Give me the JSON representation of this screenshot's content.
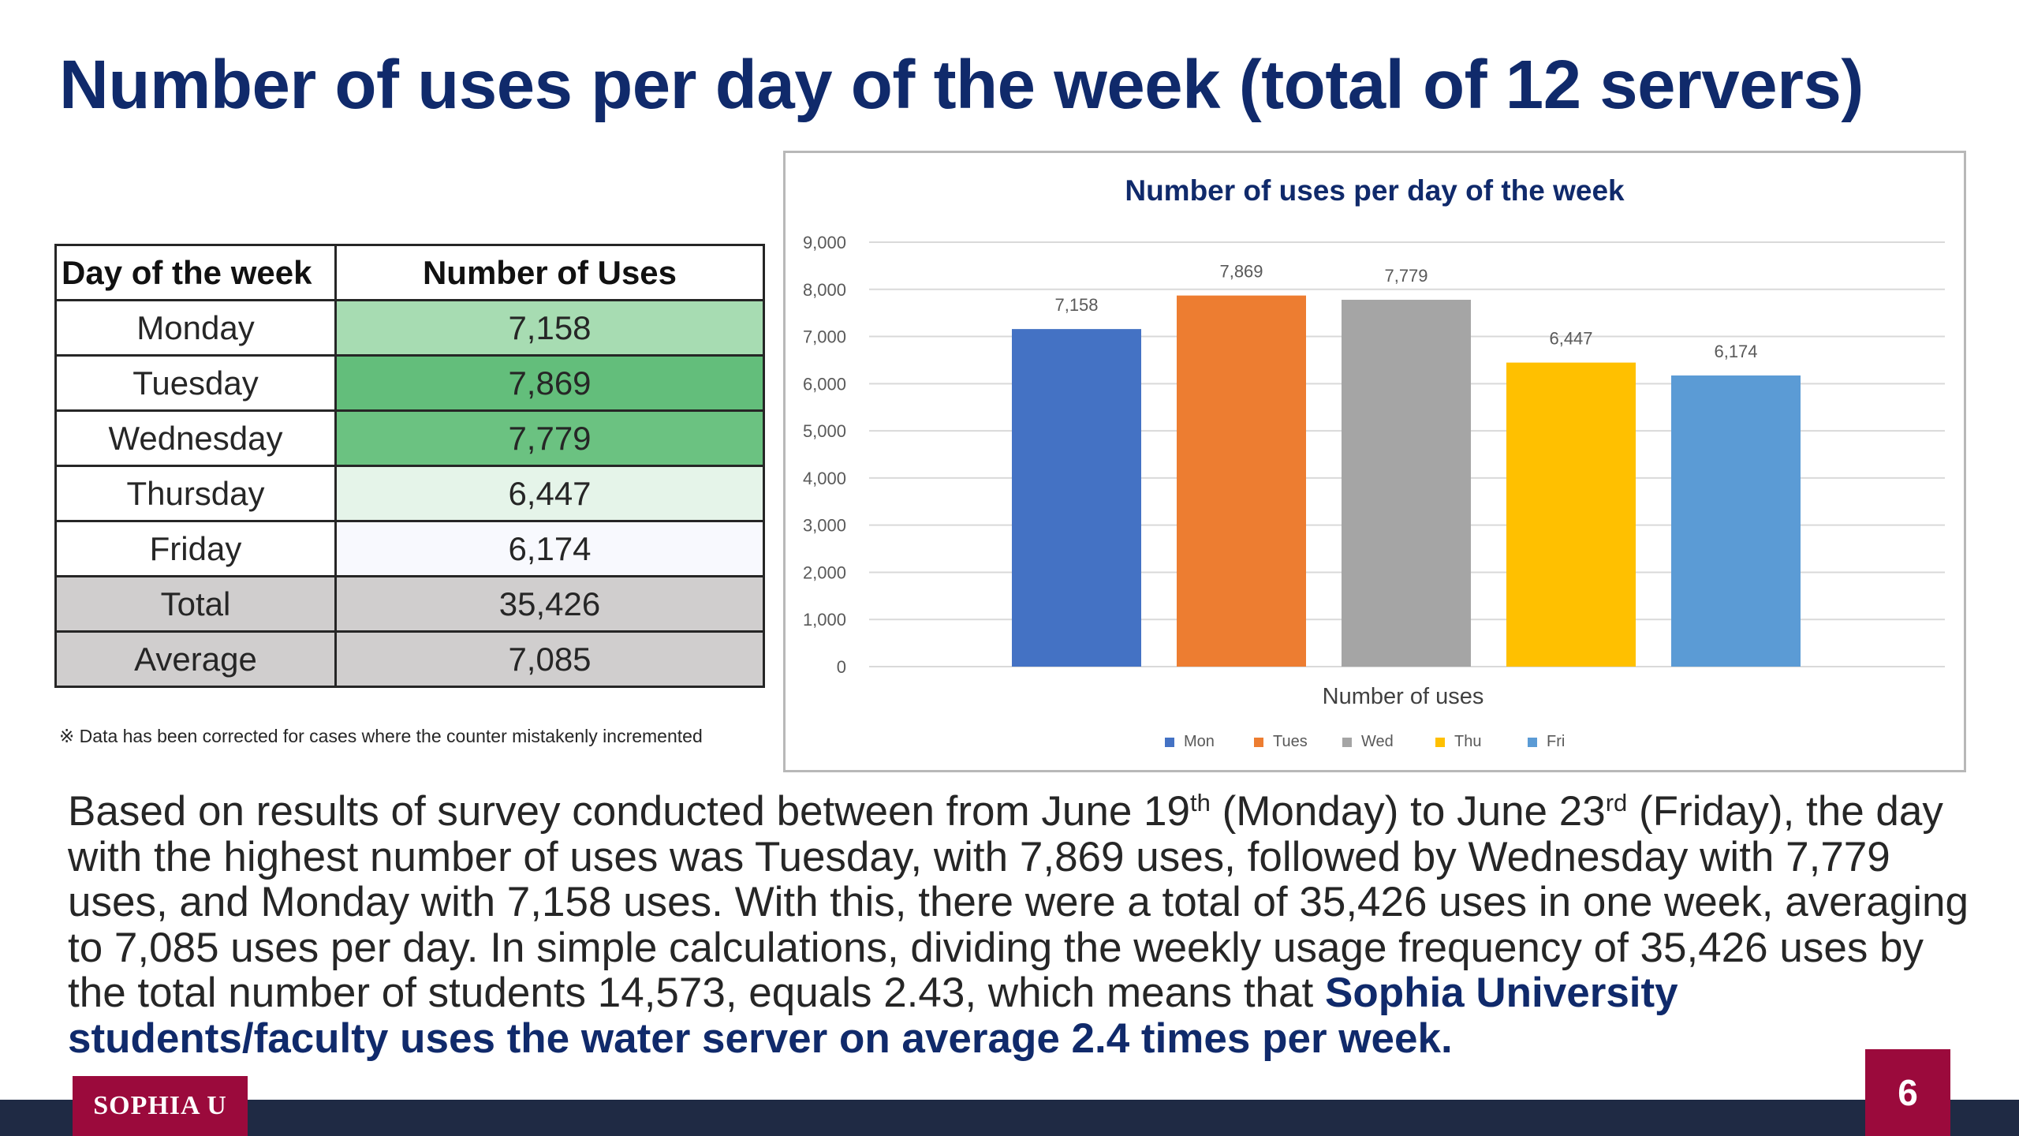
{
  "slide": {
    "title": "Number of uses per day of the week (total of 12 servers)",
    "footnote": "※ Data has been corrected for cases where the counter mistakenly incremented",
    "logo_text": "SOPHIA U",
    "page_number": "6"
  },
  "table": {
    "headers": [
      "Day of the week",
      "Number of Uses"
    ],
    "rows": [
      {
        "day": "Monday",
        "uses": "7,158",
        "fill": "#a7dcb2"
      },
      {
        "day": "Tuesday",
        "uses": "7,869",
        "fill": "#63be7b"
      },
      {
        "day": "Wednesday",
        "uses": "7,779",
        "fill": "#6bc281"
      },
      {
        "day": "Thursday",
        "uses": "6,447",
        "fill": "#e5f4e9"
      },
      {
        "day": "Friday",
        "uses": "6,174",
        "fill": "#f8f9fe"
      },
      {
        "day": "Total",
        "uses": "35,426",
        "fill": "#d0cece"
      },
      {
        "day": "Average",
        "uses": "7,085",
        "fill": "#d0cece"
      }
    ]
  },
  "summary": {
    "p1": "Based on results of survey conducted between from June 19",
    "sup1": "th",
    "p2": " (Monday) to June 23",
    "sup2": "rd",
    "p3": " (Friday), the day with the highest number of uses was Tuesday, with 7,869 uses, followed by Wednesday with 7,779 uses, and Monday with 7,158 uses. With this, there were a total of 35,426 uses in one week, averaging to 7,085 uses per day. In simple calculations, dividing the weekly usage frequency of 35,426 uses by the total number of students 14,573, equals 2.43, which means that ",
    "highlight": "Sophia University students/faculty uses the water server on average 2.4 times per week."
  },
  "colors": {
    "title": "#102a6b",
    "accent": "#9b0a3c",
    "footer": "#1f2a44"
  },
  "chart_data": {
    "type": "bar",
    "title": "Number of uses per day of the week",
    "xlabel": "Number of uses",
    "ylabel": "",
    "categories": [
      "Mon",
      "Tues",
      "Wed",
      "Thu",
      "Fri"
    ],
    "values": [
      7158,
      7869,
      7779,
      6447,
      6174
    ],
    "data_labels": [
      "7,158",
      "7,869",
      "7,779",
      "6,447",
      "6,174"
    ],
    "colors": [
      "#4472c4",
      "#ed7d31",
      "#a5a5a5",
      "#ffc000",
      "#5b9bd5"
    ],
    "ylim": [
      0,
      9000
    ],
    "yticks": [
      0,
      1000,
      2000,
      3000,
      4000,
      5000,
      6000,
      7000,
      8000,
      9000
    ],
    "ytick_labels": [
      "0",
      "1,000",
      "2,000",
      "3,000",
      "4,000",
      "5,000",
      "6,000",
      "7,000",
      "8,000",
      "9,000"
    ],
    "grid": true,
    "legend": "bottom"
  }
}
